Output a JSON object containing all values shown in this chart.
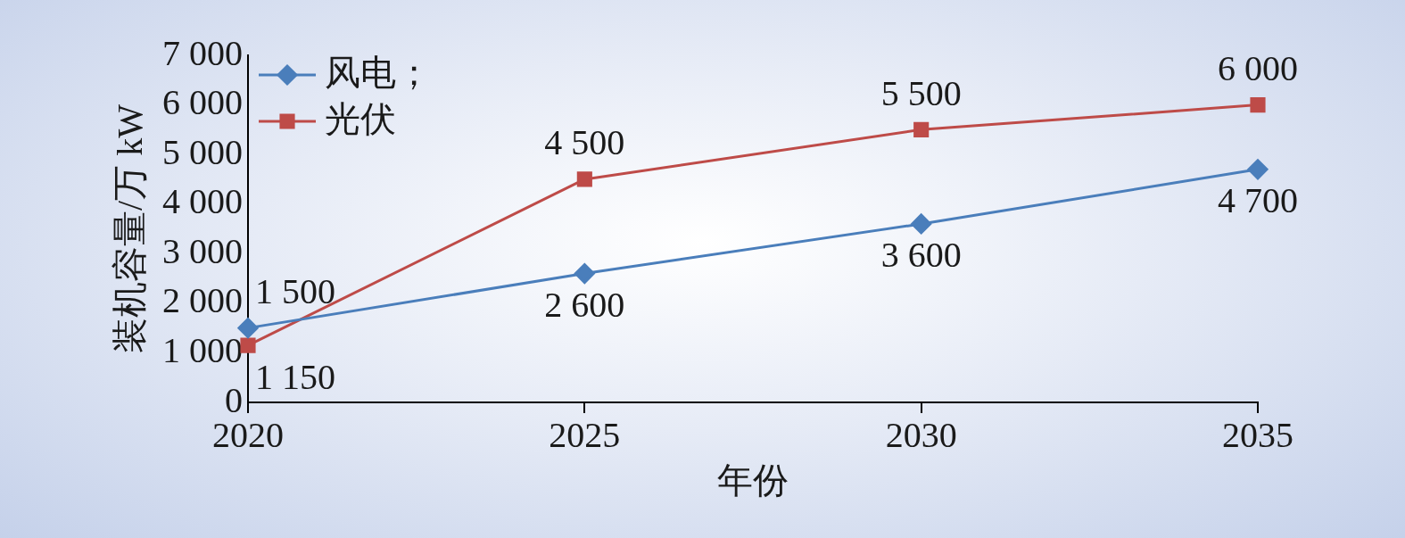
{
  "chart_data": {
    "type": "line",
    "xlabel": "年份",
    "ylabel": "装机容量/万 kW",
    "categories": [
      "2020",
      "2025",
      "2030",
      "2035"
    ],
    "ylim": [
      0,
      7000
    ],
    "yticks": [
      {
        "value": 0,
        "label": "0"
      },
      {
        "value": 1000,
        "label": "1 000"
      },
      {
        "value": 2000,
        "label": "2 000"
      },
      {
        "value": 3000,
        "label": "3 000"
      },
      {
        "value": 4000,
        "label": "4 000"
      },
      {
        "value": 5000,
        "label": "5 000"
      },
      {
        "value": 6000,
        "label": "6 000"
      },
      {
        "value": 7000,
        "label": "7 000"
      }
    ],
    "grid": false,
    "legend": "top left",
    "line_style": "solid",
    "series": [
      {
        "name": "风电；",
        "color": "#4a7ebb",
        "marker": "diamond",
        "values": [
          1500,
          2600,
          3600,
          4700
        ],
        "value_labels": [
          "1 500",
          "2 600",
          "3 600",
          "4 700"
        ]
      },
      {
        "name": "光伏",
        "color": "#be4b48",
        "marker": "square",
        "values": [
          1150,
          4500,
          5500,
          6000
        ],
        "value_labels": [
          "1 150",
          "4 500",
          "5 500",
          "6 000"
        ]
      }
    ]
  }
}
